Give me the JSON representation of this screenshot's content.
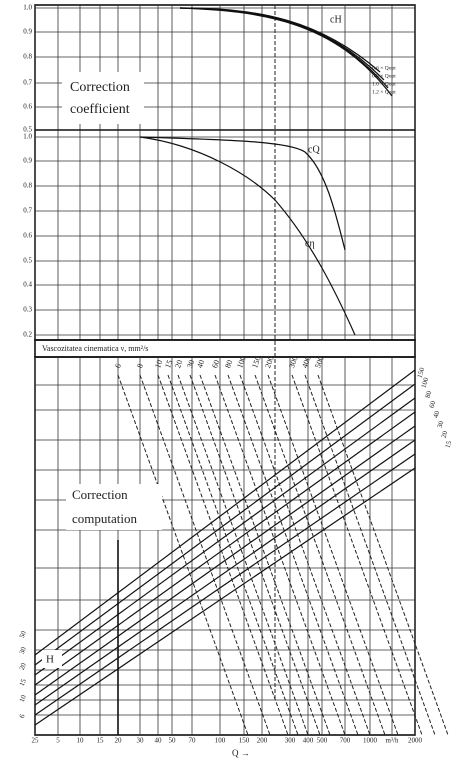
{
  "upper": {
    "label_lines": [
      "Correction",
      "coefficient"
    ],
    "top_ticks": [
      "1.0",
      "0.9",
      "0.8",
      "0.7",
      "0.6",
      "0.5"
    ],
    "bottom_ticks": [
      "1.0",
      "0.9",
      "0.8",
      "0.7",
      "0.6",
      "0.5",
      "0.4",
      "0.3",
      "0.2"
    ],
    "curve_labels": {
      "head": "cH",
      "flow": "cQ",
      "efficiency": "cη"
    },
    "flow_ratios": [
      "0.6 × Qopt",
      "0.8 × Qopt",
      "1.0 × Qopt",
      "1.2 × Qopt"
    ]
  },
  "viscosity": {
    "title": "Vascozitatea cinematica ν, mm²/s",
    "labels": [
      "6",
      "8",
      "10",
      "15",
      "20",
      "30",
      "40",
      "60",
      "80",
      "100",
      "150",
      "200",
      "300",
      "400",
      "500"
    ]
  },
  "lower": {
    "label_lines": [
      "Correction",
      "computation"
    ],
    "axis_h": "H",
    "head_labels": [
      "6",
      "10",
      "15",
      "20",
      "30",
      "50"
    ],
    "right_labels": [
      "150",
      "100",
      "80",
      "60",
      "40",
      "30",
      "20",
      "15"
    ],
    "x_labels": [
      "25",
      "5",
      "10",
      "15",
      "20",
      "30",
      "40",
      "50",
      "70",
      "100",
      "150",
      "200",
      "300",
      "400",
      "500",
      "700",
      "1000",
      "m³/h",
      "2000"
    ],
    "axis_q": "Q →"
  }
}
